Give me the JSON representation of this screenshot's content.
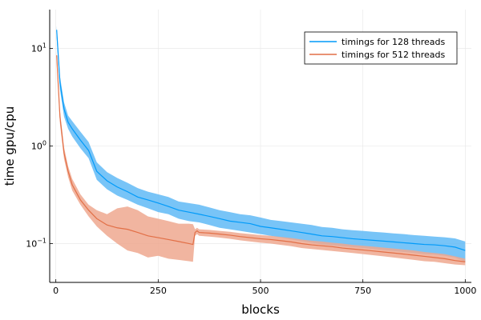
{
  "chart_data": {
    "type": "line",
    "title": "",
    "xlabel": "blocks",
    "ylabel": "time gpu/cpu",
    "xlim": [
      -15,
      1015
    ],
    "ylim": [
      0.04,
      25
    ],
    "yscale": "log",
    "x_ticks": [
      0,
      250,
      500,
      750,
      1000
    ],
    "x_tick_labels": [
      "0",
      "250",
      "500",
      "750",
      "1000"
    ],
    "y_ticks": [
      0.1,
      1,
      10
    ],
    "y_tick_labels": [
      {
        "base": "10",
        "exp": "−1"
      },
      {
        "base": "10",
        "exp": "0"
      },
      {
        "base": "10",
        "exp": "1"
      }
    ],
    "grid": true,
    "legend_position": "top-right",
    "series": [
      {
        "name": "timings for 128 threads",
        "color": "#009af9",
        "band_color": "#60baf6",
        "x": [
          2,
          10,
          20,
          30,
          40,
          60,
          80,
          100,
          125,
          150,
          175,
          200,
          225,
          250,
          275,
          300,
          325,
          350,
          375,
          400,
          425,
          450,
          475,
          500,
          525,
          550,
          575,
          600,
          625,
          650,
          675,
          700,
          725,
          750,
          775,
          800,
          825,
          850,
          875,
          900,
          925,
          950,
          975,
          1000
        ],
        "y": [
          15.5,
          4.5,
          2.4,
          1.75,
          1.5,
          1.15,
          0.9,
          0.55,
          0.44,
          0.38,
          0.34,
          0.3,
          0.28,
          0.26,
          0.24,
          0.22,
          0.21,
          0.2,
          0.19,
          0.18,
          0.17,
          0.165,
          0.16,
          0.15,
          0.145,
          0.14,
          0.135,
          0.13,
          0.125,
          0.12,
          0.118,
          0.115,
          0.112,
          0.11,
          0.108,
          0.106,
          0.104,
          0.102,
          0.1,
          0.098,
          0.097,
          0.095,
          0.092,
          0.085
        ],
        "lower": [
          13,
          3.8,
          2.0,
          1.5,
          1.25,
          0.95,
          0.75,
          0.45,
          0.36,
          0.31,
          0.28,
          0.25,
          0.23,
          0.21,
          0.2,
          0.18,
          0.17,
          0.165,
          0.155,
          0.145,
          0.14,
          0.135,
          0.13,
          0.125,
          0.12,
          0.115,
          0.11,
          0.106,
          0.102,
          0.098,
          0.096,
          0.094,
          0.092,
          0.09,
          0.088,
          0.086,
          0.084,
          0.082,
          0.08,
          0.078,
          0.077,
          0.075,
          0.072,
          0.065
        ],
        "upper": [
          17,
          5.2,
          2.8,
          2.05,
          1.8,
          1.4,
          1.1,
          0.68,
          0.54,
          0.47,
          0.42,
          0.37,
          0.34,
          0.32,
          0.3,
          0.27,
          0.26,
          0.25,
          0.235,
          0.22,
          0.21,
          0.2,
          0.195,
          0.185,
          0.175,
          0.17,
          0.165,
          0.16,
          0.155,
          0.148,
          0.145,
          0.14,
          0.137,
          0.135,
          0.132,
          0.13,
          0.127,
          0.125,
          0.122,
          0.12,
          0.118,
          0.116,
          0.113,
          0.105
        ]
      },
      {
        "name": "timings for 512 threads",
        "color": "#e26f46",
        "band_color": "#efa88f",
        "x": [
          2,
          10,
          20,
          30,
          40,
          60,
          80,
          100,
          125,
          150,
          175,
          200,
          225,
          250,
          275,
          300,
          325,
          335,
          340,
          345,
          350,
          375,
          400,
          425,
          450,
          475,
          500,
          525,
          550,
          575,
          600,
          625,
          650,
          675,
          700,
          725,
          750,
          775,
          800,
          825,
          850,
          875,
          900,
          925,
          950,
          975,
          1000
        ],
        "y": [
          8.5,
          2.0,
          0.85,
          0.55,
          0.4,
          0.28,
          0.22,
          0.18,
          0.155,
          0.145,
          0.14,
          0.13,
          0.12,
          0.115,
          0.11,
          0.105,
          0.1,
          0.098,
          0.13,
          0.135,
          0.13,
          0.128,
          0.125,
          0.122,
          0.118,
          0.115,
          0.112,
          0.11,
          0.107,
          0.104,
          0.1,
          0.097,
          0.095,
          0.093,
          0.09,
          0.088,
          0.086,
          0.084,
          0.082,
          0.08,
          0.078,
          0.076,
          0.074,
          0.072,
          0.07,
          0.067,
          0.065
        ],
        "lower": [
          7.5,
          1.7,
          0.74,
          0.48,
          0.35,
          0.25,
          0.19,
          0.15,
          0.12,
          0.1,
          0.085,
          0.08,
          0.072,
          0.075,
          0.07,
          0.068,
          0.066,
          0.065,
          0.12,
          0.125,
          0.12,
          0.118,
          0.115,
          0.112,
          0.108,
          0.105,
          0.102,
          0.1,
          0.097,
          0.094,
          0.09,
          0.088,
          0.086,
          0.084,
          0.082,
          0.08,
          0.078,
          0.076,
          0.074,
          0.072,
          0.07,
          0.068,
          0.066,
          0.065,
          0.063,
          0.061,
          0.06
        ],
        "upper": [
          9.5,
          2.3,
          0.97,
          0.62,
          0.46,
          0.32,
          0.25,
          0.22,
          0.2,
          0.23,
          0.24,
          0.22,
          0.19,
          0.18,
          0.17,
          0.16,
          0.16,
          0.158,
          0.14,
          0.145,
          0.14,
          0.138,
          0.135,
          0.132,
          0.128,
          0.125,
          0.122,
          0.12,
          0.117,
          0.114,
          0.11,
          0.107,
          0.105,
          0.102,
          0.1,
          0.097,
          0.095,
          0.093,
          0.091,
          0.089,
          0.087,
          0.085,
          0.082,
          0.08,
          0.078,
          0.074,
          0.07
        ]
      }
    ]
  }
}
